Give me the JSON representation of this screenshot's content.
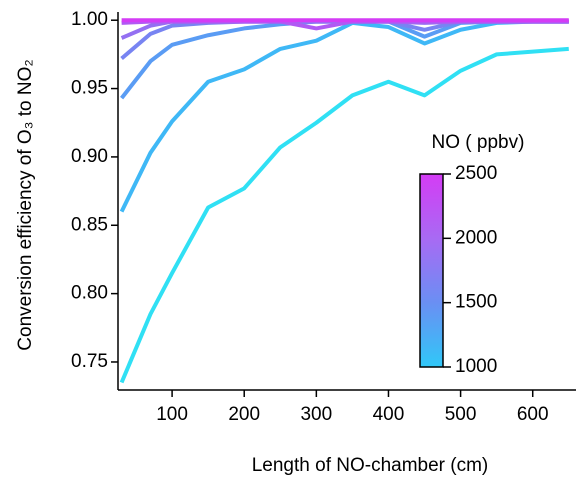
{
  "chart_data": {
    "type": "line",
    "x_label": "Length of NO-chamber (cm)",
    "y_label": "Conversion efficiency of O₃ to NO₂",
    "x": [
      30,
      70,
      100,
      150,
      200,
      250,
      300,
      350,
      400,
      450,
      500,
      550,
      600,
      650
    ],
    "series": [
      {
        "color": "#30e0f4",
        "values": [
          0.735,
          0.785,
          0.815,
          0.863,
          0.877,
          0.907,
          0.925,
          0.945,
          0.955,
          0.945,
          0.963,
          0.975,
          0.977,
          0.979
        ]
      },
      {
        "color": "#3fb8f6",
        "values": [
          0.86,
          0.903,
          0.926,
          0.955,
          0.964,
          0.979,
          0.985,
          0.998,
          0.995,
          0.983,
          0.993,
          0.998,
          0.999,
          0.999
        ]
      },
      {
        "color": "#5a9cf4",
        "values": [
          0.943,
          0.97,
          0.982,
          0.989,
          0.994,
          0.997,
          0.999,
          0.999,
          0.999,
          0.988,
          0.998,
          0.999,
          0.999,
          0.999
        ]
      },
      {
        "color": "#7884f2",
        "values": [
          0.972,
          0.99,
          0.996,
          0.998,
          0.999,
          0.999,
          0.999,
          0.999,
          0.999,
          0.993,
          0.999,
          0.999,
          0.999,
          0.999
        ]
      },
      {
        "color": "#9470f2",
        "values": [
          0.987,
          0.996,
          0.999,
          0.999,
          0.999,
          0.999,
          0.999,
          0.999,
          0.999,
          0.998,
          0.999,
          0.999,
          0.999,
          0.999
        ]
      },
      {
        "color": "#b05af3",
        "values": [
          0.998,
          0.999,
          0.999,
          0.999,
          0.999,
          0.999,
          0.994,
          0.999,
          0.999,
          0.999,
          0.999,
          0.999,
          0.999,
          0.999
        ]
      },
      {
        "color": "#d43cf5",
        "values": [
          1.0,
          1.0,
          1.0,
          1.0,
          1.0,
          1.0,
          1.0,
          1.0,
          1.0,
          1.0,
          1.0,
          1.0,
          1.0,
          1.0
        ]
      }
    ],
    "xlim": [
      25,
      660
    ],
    "xticks": [
      100,
      200,
      300,
      400,
      500,
      600
    ],
    "ylim": [
      0.7295,
      1.006
    ],
    "yticks": [
      {
        "value": 0.75,
        "label": "0.75"
      },
      {
        "value": 0.8,
        "label": "0.80"
      },
      {
        "value": 0.85,
        "label": "0.85"
      },
      {
        "value": 0.9,
        "label": "0.90"
      },
      {
        "value": 0.95,
        "label": "0.95"
      },
      {
        "value": 1.0,
        "label": "1.00"
      }
    ],
    "colorbar": {
      "label": "NO ( ppbv)",
      "lim": [
        1000,
        2500
      ],
      "ticks": [
        1000,
        1500,
        2000,
        2500
      ],
      "colors": [
        "#30c8f8",
        "#6a8ff3",
        "#a86af3",
        "#d43cf5"
      ]
    }
  }
}
